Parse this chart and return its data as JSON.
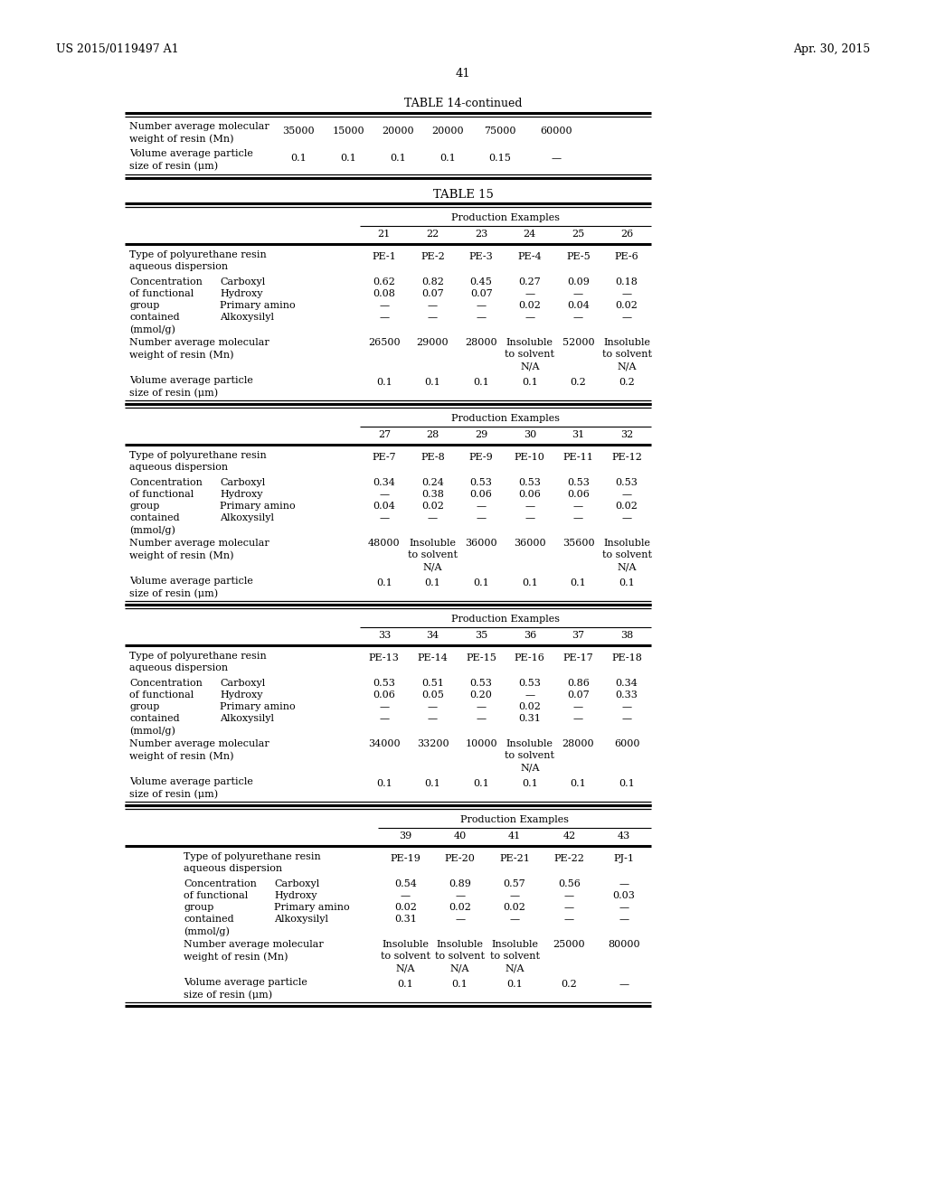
{
  "header_left": "US 2015/0119497 A1",
  "header_right": "Apr. 30, 2015",
  "page_number": "41",
  "background_color": "#ffffff",
  "table14_continued_title": "TABLE 14-continued",
  "table15_title": "TABLE 15",
  "table14_rows": [
    {
      "label": "Number average molecular\nweight of resin (Mn)",
      "values": [
        "35000",
        "15000",
        "20000",
        "20000",
        "75000",
        "60000"
      ]
    },
    {
      "label": "Volume average particle\nsize of resin (μm)",
      "values": [
        "0.1",
        "0.1",
        "0.1",
        "0.1",
        "0.15",
        "—"
      ]
    }
  ],
  "table15_sections": [
    {
      "header_label": "Production Examples",
      "col_numbers": [
        "21",
        "22",
        "23",
        "24",
        "25",
        "26"
      ],
      "type_row": [
        "PE-1",
        "PE-2",
        "PE-3",
        "PE-4",
        "PE-5",
        "PE-6"
      ],
      "carboxyl": [
        "0.62",
        "0.82",
        "0.45",
        "0.27",
        "0.09",
        "0.18"
      ],
      "hydroxy": [
        "0.08",
        "0.07",
        "0.07",
        "—",
        "—",
        "—"
      ],
      "primary_amino": [
        "—",
        "—",
        "—",
        "0.02",
        "0.04",
        "0.02"
      ],
      "alkoxysilyl": [
        "—",
        "—",
        "—",
        "—",
        "—",
        "—"
      ],
      "mol_weight": [
        "26500",
        "29000",
        "28000",
        "Insoluble\nto solvent\nN/A",
        "52000",
        "Insoluble\nto solvent\nN/A"
      ],
      "particle_size": [
        "0.1",
        "0.1",
        "0.1",
        "0.1",
        "0.2",
        "0.2"
      ],
      "indented": false
    },
    {
      "header_label": "Production Examples",
      "col_numbers": [
        "27",
        "28",
        "29",
        "30",
        "31",
        "32"
      ],
      "type_row": [
        "PE-7",
        "PE-8",
        "PE-9",
        "PE-10",
        "PE-11",
        "PE-12"
      ],
      "carboxyl": [
        "0.34",
        "0.24",
        "0.53",
        "0.53",
        "0.53",
        "0.53"
      ],
      "hydroxy": [
        "—",
        "0.38",
        "0.06",
        "0.06",
        "0.06",
        "—"
      ],
      "primary_amino": [
        "0.04",
        "0.02",
        "—",
        "—",
        "—",
        "0.02"
      ],
      "alkoxysilyl": [
        "—",
        "—",
        "—",
        "—",
        "—",
        "—"
      ],
      "mol_weight": [
        "48000",
        "Insoluble\nto solvent\nN/A",
        "36000",
        "36000",
        "35600",
        "Insoluble\nto solvent\nN/A"
      ],
      "particle_size": [
        "0.1",
        "0.1",
        "0.1",
        "0.1",
        "0.1",
        "0.1"
      ],
      "indented": false
    },
    {
      "header_label": "Production Examples",
      "col_numbers": [
        "33",
        "34",
        "35",
        "36",
        "37",
        "38"
      ],
      "type_row": [
        "PE-13",
        "PE-14",
        "PE-15",
        "PE-16",
        "PE-17",
        "PE-18"
      ],
      "carboxyl": [
        "0.53",
        "0.51",
        "0.53",
        "0.53",
        "0.86",
        "0.34"
      ],
      "hydroxy": [
        "0.06",
        "0.05",
        "0.20",
        "—",
        "0.07",
        "0.33"
      ],
      "primary_amino": [
        "—",
        "—",
        "—",
        "0.02",
        "—",
        "—"
      ],
      "alkoxysilyl": [
        "—",
        "—",
        "—",
        "0.31",
        "—",
        "—"
      ],
      "mol_weight": [
        "34000",
        "33200",
        "10000",
        "Insoluble\nto solvent\nN/A",
        "28000",
        "6000"
      ],
      "particle_size": [
        "0.1",
        "0.1",
        "0.1",
        "0.1",
        "0.1",
        "0.1"
      ],
      "indented": false
    },
    {
      "header_label": "Production Examples",
      "col_numbers": [
        "39",
        "40",
        "41",
        "42",
        "43"
      ],
      "type_row": [
        "PE-19",
        "PE-20",
        "PE-21",
        "PE-22",
        "PJ-1"
      ],
      "carboxyl": [
        "0.54",
        "0.89",
        "0.57",
        "0.56",
        "—"
      ],
      "hydroxy": [
        "—",
        "—",
        "—",
        "—",
        "0.03"
      ],
      "primary_amino": [
        "0.02",
        "0.02",
        "0.02",
        "—",
        "—"
      ],
      "alkoxysilyl": [
        "0.31",
        "—",
        "—",
        "—",
        "—"
      ],
      "mol_weight": [
        "Insoluble\nto solvent\nN/A",
        "Insoluble\nto solvent\nN/A",
        "Insoluble\nto solvent\nN/A",
        "25000",
        "80000"
      ],
      "particle_size": [
        "0.1",
        "0.1",
        "0.1",
        "0.2",
        "—"
      ],
      "indented": true
    }
  ]
}
